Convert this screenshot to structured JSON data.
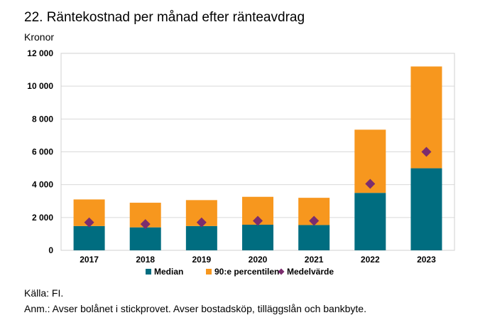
{
  "title": "22. Räntekostnad per månad efter ränteavdrag",
  "unit_label": "Kronor",
  "source": "Källa: FI.",
  "note": "Anm.: Avser bolånet i stickprovet. Avser bostadsköp, tilläggslån och bankbyte.",
  "chart_data": {
    "type": "bar",
    "stacked": true,
    "categories": [
      "2017",
      "2018",
      "2019",
      "2020",
      "2021",
      "2022",
      "2023"
    ],
    "series": [
      {
        "name": "Median",
        "kind": "bar",
        "color": "#006d80",
        "values": [
          1480,
          1400,
          1480,
          1560,
          1540,
          3500,
          5000
        ]
      },
      {
        "name": "90:e percentilen",
        "kind": "bar",
        "color": "#f7971e",
        "values": [
          1620,
          1500,
          1580,
          1700,
          1660,
          3850,
          6200
        ]
      },
      {
        "name": "Medelvärde",
        "kind": "marker",
        "marker": "diamond",
        "color": "#7b2d6e",
        "values": [
          1700,
          1600,
          1700,
          1800,
          1800,
          4050,
          6000
        ]
      }
    ],
    "yticks": [
      "0",
      "2 000",
      "4 000",
      "6 000",
      "8 000",
      "10 000",
      "12 000"
    ],
    "ylim": [
      0,
      12000
    ],
    "grid": true,
    "legend": "bottom"
  }
}
